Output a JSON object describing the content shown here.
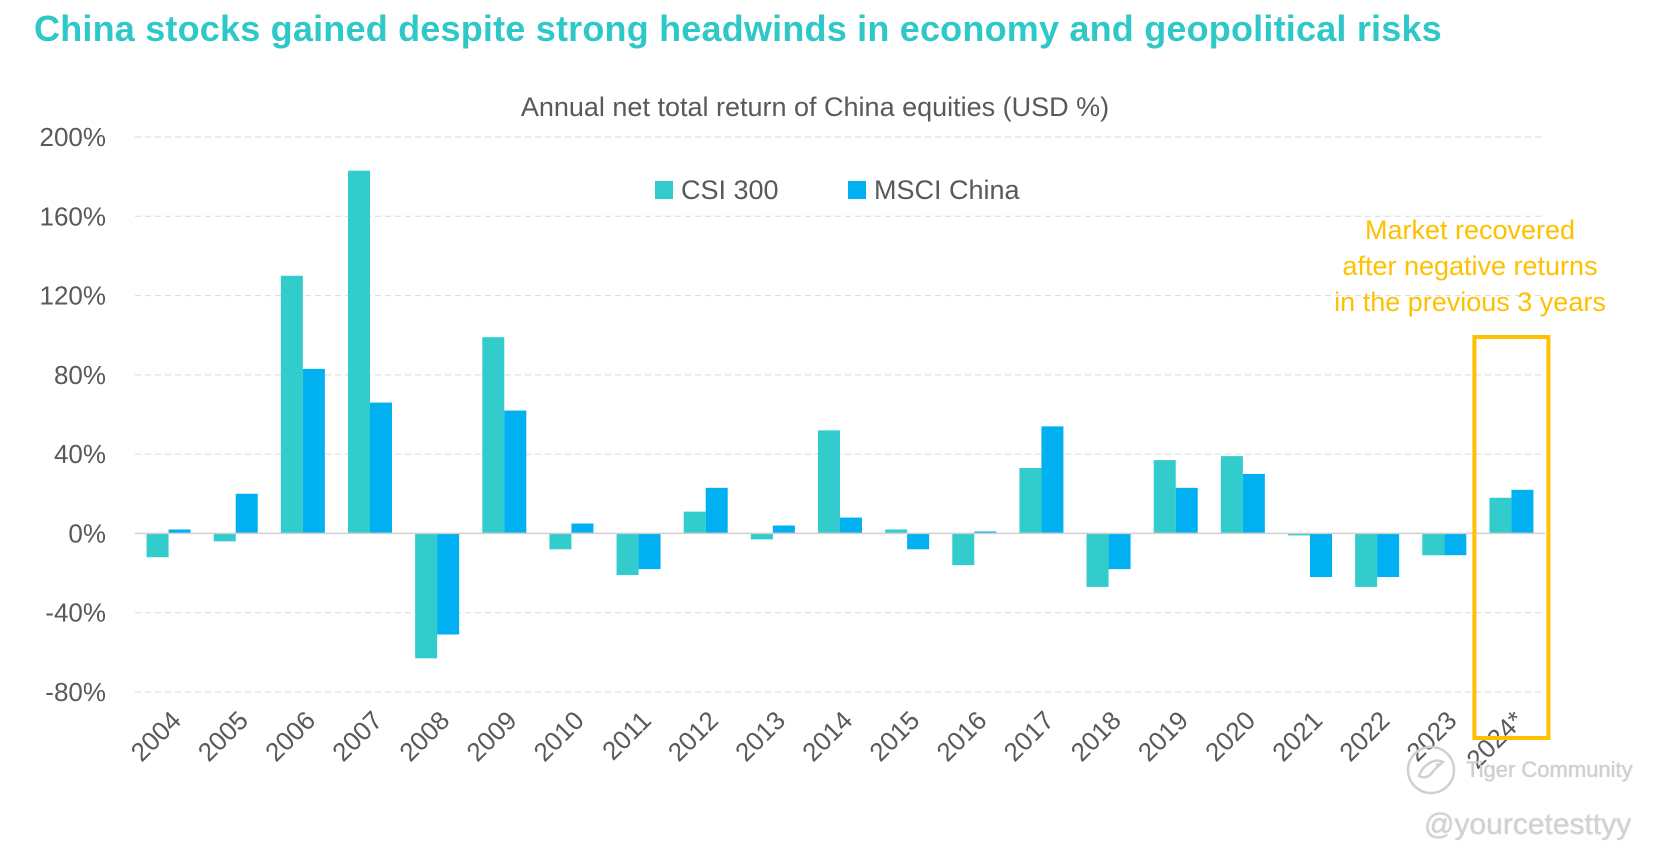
{
  "page": {
    "title": "China stocks gained despite strong headwinds in economy and geopolitical risks"
  },
  "watermark": {
    "brand": "Tiger Community",
    "handle": "@yourcetesttyy"
  },
  "colors": {
    "csi300": "#33cccc",
    "msci": "#00b0f0",
    "highlight": "#ffc000",
    "title": "#2ec8c8",
    "axis_text": "#595959",
    "grid": "#d9d9d9"
  },
  "chart_data": {
    "type": "bar",
    "title": "Annual net total return of China equities (USD %)",
    "xlabel": "",
    "ylabel": "",
    "ylim": [
      -80,
      200
    ],
    "yticks": [
      -80,
      -40,
      0,
      40,
      80,
      120,
      160,
      200
    ],
    "ytick_labels": [
      "-80%",
      "-40%",
      "0%",
      "40%",
      "80%",
      "120%",
      "160%",
      "200%"
    ],
    "grid": true,
    "legend_position": "top-center",
    "categories": [
      "2004",
      "2005",
      "2006",
      "2007",
      "2008",
      "2009",
      "2010",
      "2011",
      "2012",
      "2013",
      "2014",
      "2015",
      "2016",
      "2017",
      "2018",
      "2019",
      "2020",
      "2021",
      "2022",
      "2023",
      "2024*"
    ],
    "series": [
      {
        "name": "CSI 300",
        "values": [
          -12,
          -4,
          130,
          183,
          -63,
          99,
          -8,
          -21,
          11,
          -3,
          52,
          2,
          -16,
          33,
          -27,
          37,
          39,
          -1,
          -27,
          -11,
          18
        ]
      },
      {
        "name": "MSCI China",
        "values": [
          2,
          20,
          83,
          66,
          -51,
          62,
          5,
          -18,
          23,
          4,
          8,
          -8,
          1,
          54,
          -18,
          23,
          30,
          -22,
          -22,
          -11,
          22
        ]
      }
    ],
    "annotation": {
      "lines": [
        "Market recovered",
        "after negative returns",
        "in the previous 3 years"
      ],
      "target_category": "2024*"
    }
  }
}
